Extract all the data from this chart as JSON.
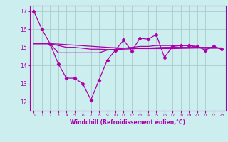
{
  "x": [
    0,
    1,
    2,
    3,
    4,
    5,
    6,
    7,
    8,
    9,
    10,
    11,
    12,
    13,
    14,
    15,
    16,
    17,
    18,
    19,
    20,
    21,
    22,
    23
  ],
  "line1": [
    17.0,
    16.0,
    15.2,
    14.1,
    13.3,
    13.3,
    13.0,
    12.1,
    13.2,
    14.3,
    14.85,
    15.4,
    14.8,
    15.5,
    15.45,
    15.7,
    14.45,
    15.05,
    15.1,
    15.1,
    15.05,
    14.85,
    15.05,
    14.9
  ],
  "line2": [
    15.2,
    15.2,
    15.2,
    14.7,
    14.7,
    14.7,
    14.7,
    14.7,
    14.7,
    14.85,
    14.9,
    14.95,
    15.0,
    15.05,
    15.05,
    15.1,
    15.1,
    15.1,
    15.1,
    15.1,
    15.0,
    15.0,
    15.0,
    14.95
  ],
  "line3": [
    15.2,
    15.2,
    15.2,
    15.1,
    15.0,
    15.0,
    14.95,
    14.9,
    14.9,
    14.88,
    14.88,
    14.9,
    14.92,
    14.94,
    14.96,
    14.98,
    15.0,
    15.0,
    15.0,
    15.0,
    15.0,
    14.95,
    14.95,
    14.95
  ],
  "line4": [
    15.2,
    15.2,
    15.2,
    15.18,
    15.15,
    15.12,
    15.09,
    15.06,
    15.03,
    15.0,
    14.98,
    14.96,
    14.94,
    14.93,
    14.93,
    14.93,
    14.93,
    14.93,
    14.94,
    14.95,
    14.96,
    14.96,
    14.97,
    14.97
  ],
  "color": "#aa00aa",
  "bg_color": "#cceeee",
  "grid_color": "#aacccc",
  "xlabel": "Windchill (Refroidissement éolien,°C)",
  "ylim": [
    11.5,
    17.3
  ],
  "xlim": [
    -0.5,
    23.5
  ],
  "yticks": [
    12,
    13,
    14,
    15,
    16,
    17
  ],
  "xticks": [
    0,
    1,
    2,
    3,
    4,
    5,
    6,
    7,
    8,
    9,
    10,
    11,
    12,
    13,
    14,
    15,
    16,
    17,
    18,
    19,
    20,
    21,
    22,
    23
  ]
}
